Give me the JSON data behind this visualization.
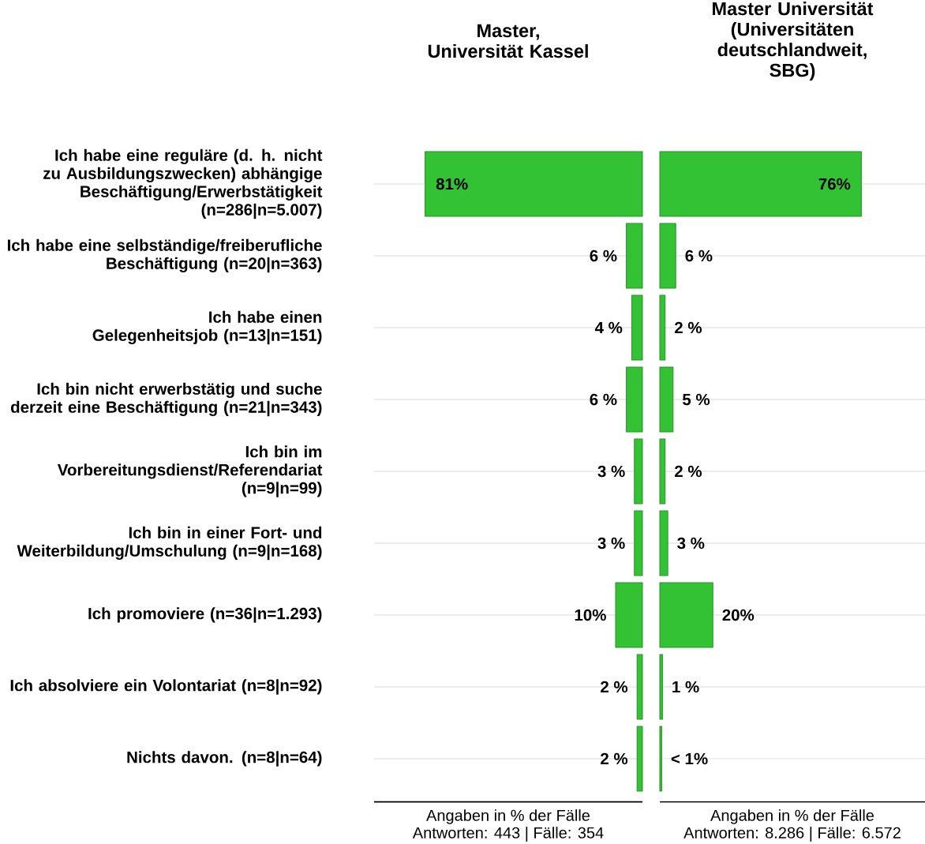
{
  "chart_data": [
    {
      "type": "bar",
      "orientation": "horizontal",
      "title": "Master, Universität Kassel",
      "categories": [
        "Ich habe eine reguläre (d. h. nicht zu Ausbildungszwecken) abhängige Beschäftigung/Erwerbstätigkeit (n=286|n=5.007)",
        "Ich habe eine selbständige/freiberufliche Beschäftigung (n=20|n=363)",
        "Ich habe einen Gelegenheitsjob (n=13|n=151)",
        "Ich bin nicht erwerbstätig und suche derzeit eine Beschäftigung (n=21|n=343)",
        "Ich bin im Vorbereitungsdienst/Referendariat (n=9|n=99)",
        "Ich bin in einer Fort- und Weiterbildung/Umschulung (n=9|n=168)",
        "Ich promoviere (n=36|n=1.293)",
        "Ich absolviere ein Volontariat (n=8|n=92)",
        "Nichts davon. (n=8|n=64)"
      ],
      "values": [
        81,
        6,
        4,
        6,
        3,
        3,
        10,
        2,
        2
      ],
      "value_labels": [
        "81%",
        "6 %",
        "4 %",
        "6 %",
        "3 %",
        "3 %",
        "10%",
        "2 %",
        "2 %"
      ],
      "color": "#33c233",
      "xlim": [
        100,
        0
      ],
      "grid": "y",
      "tick_labels": "y",
      "xlabel": "Angaben in % der Fälle",
      "annotations": [
        "Antworten: 443 | Fälle: 354"
      ]
    },
    {
      "type": "bar",
      "orientation": "horizontal",
      "title": "Master Universität (Universitäten deutschlandweit, SBG)",
      "categories": [
        null,
        null,
        null,
        null,
        null,
        null,
        null,
        null,
        null
      ],
      "values": [
        76,
        6,
        2,
        5,
        2,
        3,
        20,
        1,
        0.7
      ],
      "value_labels": [
        "76%",
        "6 %",
        "2 %",
        "5 %",
        "2 %",
        "3 %",
        "20%",
        "1 %",
        "< 1%"
      ],
      "color": "#33c233",
      "xlim": [
        0,
        100
      ],
      "grid": "y",
      "tick_labels": false,
      "xlabel": "Angaben in % der Fälle",
      "annotations": [
        "Antworten: 8.286 | Fälle: 6.572"
      ]
    }
  ]
}
